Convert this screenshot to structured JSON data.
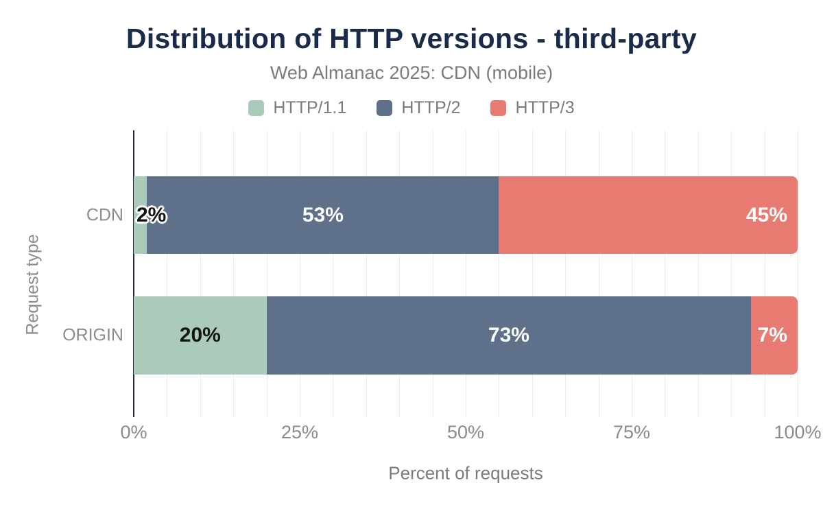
{
  "chart_data": {
    "type": "bar",
    "orientation": "horizontal",
    "stacked": true,
    "title": "Distribution of HTTP versions - third-party",
    "subtitle": "Web Almanac 2025: CDN (mobile)",
    "xlabel": "Percent of requests",
    "ylabel": "Request type",
    "categories": [
      "CDN",
      "ORIGIN"
    ],
    "series": [
      {
        "name": "HTTP/1.1",
        "color": "#aacbb9",
        "values": [
          2,
          20
        ]
      },
      {
        "name": "HTTP/2",
        "color": "#5f708b",
        "values": [
          53,
          73
        ]
      },
      {
        "name": "HTTP/3",
        "color": "#e87b71",
        "values": [
          45,
          7
        ]
      }
    ],
    "data_labels": [
      [
        "2%",
        "53%",
        "45%"
      ],
      [
        "20%",
        "73%",
        "7%"
      ]
    ],
    "x_ticks": [
      {
        "label": "0%",
        "value": 0
      },
      {
        "label": "25%",
        "value": 25
      },
      {
        "label": "50%",
        "value": 50
      },
      {
        "label": "75%",
        "value": 75
      },
      {
        "label": "100%",
        "value": 100
      }
    ],
    "xlim": [
      0,
      100
    ],
    "grid": {
      "vertical": true,
      "step_percent": 5,
      "color": "#ececec"
    },
    "legend_position": "top",
    "colors": {
      "title": "#1a2b4a",
      "subtitle": "#7b7b7b",
      "axis_line": "#22293a",
      "tick_text": "#8a8a8a",
      "label_on_light_segment": "#141414",
      "label_on_dark_segment": "#ffffff",
      "background": "#ffffff"
    }
  }
}
